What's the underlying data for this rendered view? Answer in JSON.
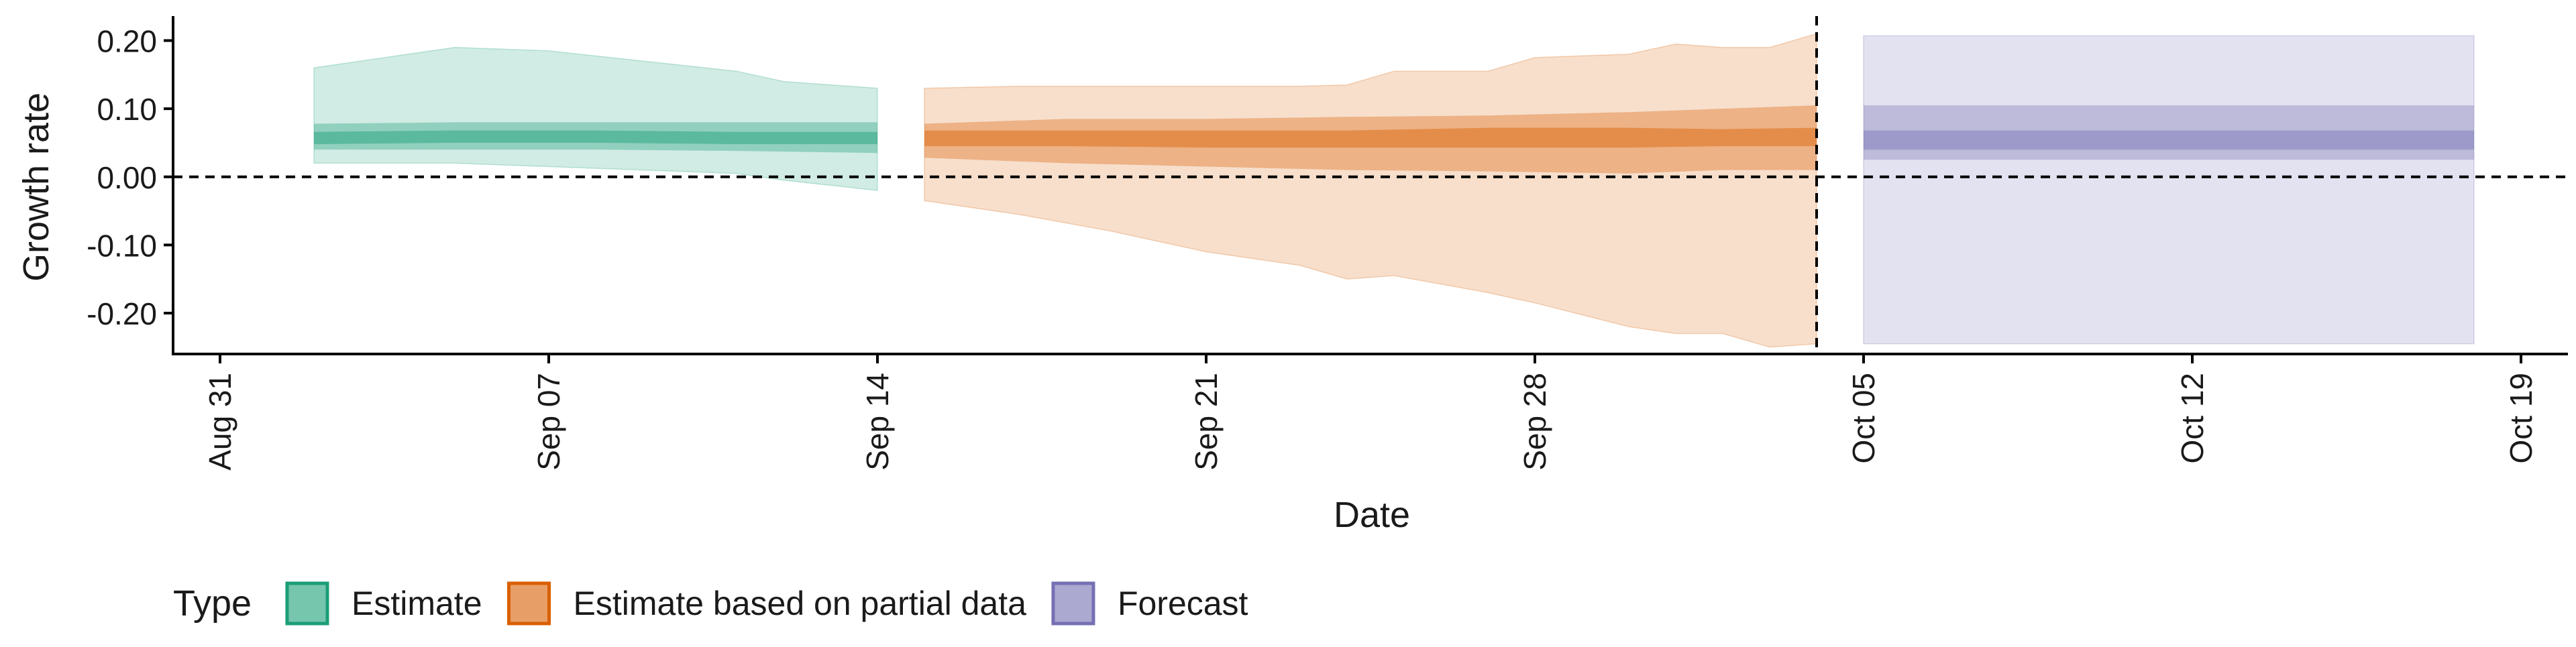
{
  "chart_data": {
    "type": "area",
    "xlabel": "Date",
    "ylabel": "Growth rate",
    "ylim": [
      -0.26,
      0.23
    ],
    "yticks": [
      -0.2,
      -0.1,
      0.0,
      0.1,
      0.2
    ],
    "ytick_labels": [
      "-0.20",
      "-0.10",
      "0.00",
      "0.10",
      "0.20"
    ],
    "xlim": [
      "2020-08-30",
      "2020-10-20"
    ],
    "xticks": [
      "2020-08-31",
      "2020-09-07",
      "2020-09-14",
      "2020-09-21",
      "2020-09-28",
      "2020-10-05",
      "2020-10-12",
      "2020-10-19"
    ],
    "xtick_labels": [
      "Aug 31",
      "Sep 07",
      "Sep 14",
      "Sep 21",
      "Sep 28",
      "Oct 05",
      "Oct 12",
      "Oct 19"
    ],
    "reference_lines": {
      "horizontal_y": 0.0,
      "vertical_x": "2020-10-04"
    },
    "legend": {
      "title": "Type",
      "position": "bottom",
      "entries": [
        "Estimate",
        "Estimate based on partial data",
        "Forecast"
      ]
    },
    "colors": {
      "Estimate": "#1b9e77",
      "Estimate based on partial data": "#d95f02",
      "Forecast": "#7570b3"
    },
    "series": [
      {
        "name": "Estimate",
        "bands": [
          {
            "x": [
              "2020-09-02",
              "2020-09-03",
              "2020-09-05",
              "2020-09-07",
              "2020-09-09",
              "2020-09-11",
              "2020-09-12",
              "2020-09-14"
            ],
            "lower": [
              0.02,
              0.02,
              0.02,
              0.015,
              0.01,
              0.005,
              -0.005,
              -0.02
            ],
            "upper": [
              0.16,
              0.17,
              0.19,
              0.185,
              0.17,
              0.155,
              0.14,
              0.13
            ]
          },
          {
            "x": [
              "2020-09-02",
              "2020-09-05",
              "2020-09-08",
              "2020-09-11",
              "2020-09-14"
            ],
            "lower": [
              0.04,
              0.04,
              0.04,
              0.038,
              0.035
            ],
            "upper": [
              0.078,
              0.08,
              0.08,
              0.08,
              0.08
            ]
          },
          {
            "x": [
              "2020-09-02",
              "2020-09-05",
              "2020-09-08",
              "2020-09-11",
              "2020-09-14"
            ],
            "lower": [
              0.048,
              0.05,
              0.05,
              0.048,
              0.048
            ],
            "upper": [
              0.066,
              0.068,
              0.068,
              0.066,
              0.066
            ]
          }
        ]
      },
      {
        "name": "Estimate based on partial data",
        "bands": [
          {
            "x": [
              "2020-09-15",
              "2020-09-17",
              "2020-09-19",
              "2020-09-21",
              "2020-09-23",
              "2020-09-24",
              "2020-09-25",
              "2020-09-27",
              "2020-09-28",
              "2020-09-30",
              "2020-10-01",
              "2020-10-02",
              "2020-10-03",
              "2020-10-04"
            ],
            "lower": [
              -0.035,
              -0.055,
              -0.08,
              -0.11,
              -0.13,
              -0.15,
              -0.145,
              -0.17,
              -0.185,
              -0.22,
              -0.23,
              -0.23,
              -0.25,
              -0.245
            ],
            "upper": [
              0.13,
              0.133,
              0.133,
              0.133,
              0.133,
              0.135,
              0.155,
              0.155,
              0.175,
              0.18,
              0.195,
              0.19,
              0.19,
              0.21
            ]
          },
          {
            "x": [
              "2020-09-15",
              "2020-09-18",
              "2020-09-21",
              "2020-09-24",
              "2020-09-27",
              "2020-09-30",
              "2020-10-02",
              "2020-10-04"
            ],
            "lower": [
              0.028,
              0.02,
              0.015,
              0.01,
              0.008,
              0.005,
              0.01,
              0.01
            ],
            "upper": [
              0.078,
              0.085,
              0.085,
              0.088,
              0.09,
              0.095,
              0.1,
              0.105
            ]
          },
          {
            "x": [
              "2020-09-15",
              "2020-09-18",
              "2020-09-21",
              "2020-09-24",
              "2020-09-27",
              "2020-09-30",
              "2020-10-02",
              "2020-10-04"
            ],
            "lower": [
              0.045,
              0.045,
              0.043,
              0.043,
              0.043,
              0.043,
              0.045,
              0.045
            ],
            "upper": [
              0.068,
              0.068,
              0.068,
              0.068,
              0.072,
              0.072,
              0.07,
              0.072
            ]
          }
        ]
      },
      {
        "name": "Forecast",
        "bands": [
          {
            "x": [
              "2020-10-05",
              "2020-10-18"
            ],
            "lower": [
              -0.245,
              -0.245
            ],
            "upper": [
              0.207,
              0.207
            ]
          },
          {
            "x": [
              "2020-10-05",
              "2020-10-18"
            ],
            "lower": [
              0.025,
              0.025
            ],
            "upper": [
              0.105,
              0.105
            ]
          },
          {
            "x": [
              "2020-10-05",
              "2020-10-18"
            ],
            "lower": [
              0.04,
              0.04
            ],
            "upper": [
              0.068,
              0.068
            ]
          }
        ]
      }
    ]
  }
}
